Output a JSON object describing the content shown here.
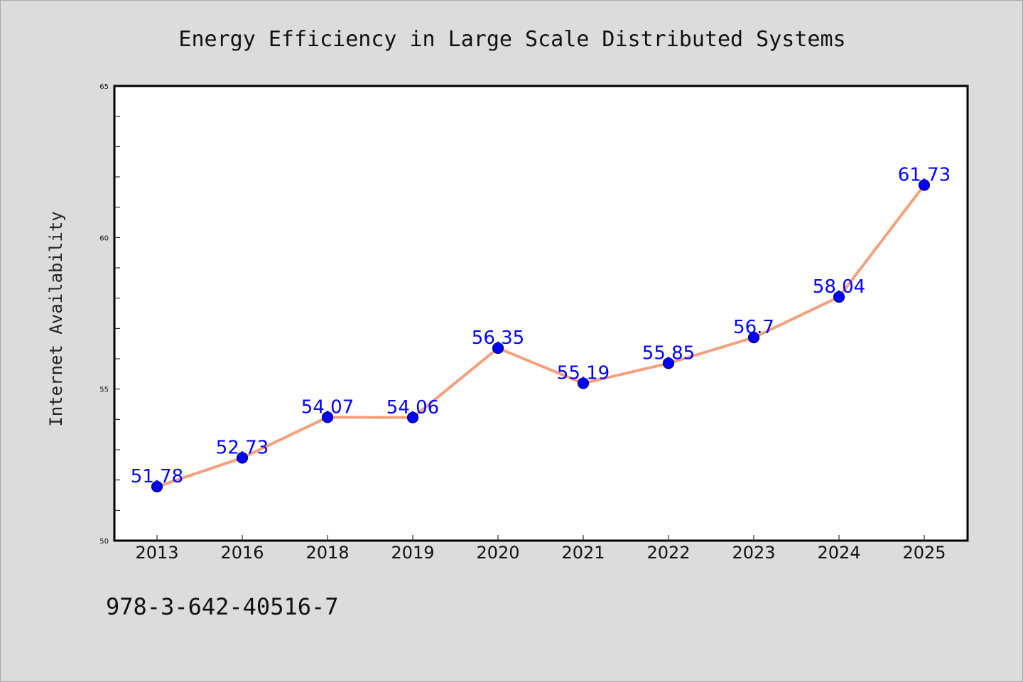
{
  "chart_data": {
    "type": "line",
    "title": "Energy Efficiency in Large Scale Distributed Systems",
    "xlabel": "",
    "ylabel": "Internet Availability",
    "categories": [
      "2013",
      "2016",
      "2018",
      "2019",
      "2020",
      "2021",
      "2022",
      "2023",
      "2024",
      "2025"
    ],
    "series": [
      {
        "values": [
          51.78,
          52.73,
          54.07,
          54.06,
          56.35,
          55.19,
          55.85,
          56.7,
          58.04,
          61.73
        ],
        "labels": [
          "51.78",
          "52.73",
          "54.07",
          "54.06",
          "56.35",
          "55.19",
          "55.85",
          "56.7",
          "58.04",
          "61.73"
        ],
        "line_color": "#f4a07c",
        "marker_color": "#0000ff"
      }
    ],
    "ylim": [
      50,
      65
    ],
    "yticks": [
      "50",
      "55",
      "60",
      "65"
    ],
    "grid": false,
    "legend": "none"
  },
  "footer": {
    "isbn": "978-3-642-40516-7"
  }
}
